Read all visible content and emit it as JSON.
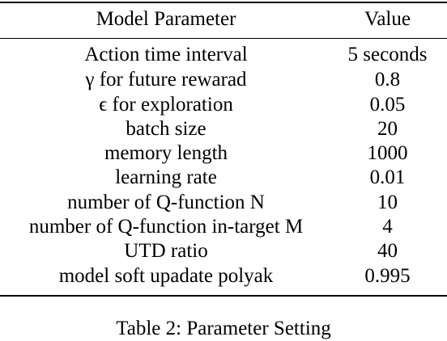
{
  "table": {
    "headers": [
      "Model Parameter",
      "Value"
    ],
    "rows": [
      {
        "param": "Action time interval",
        "value": "5 seconds"
      },
      {
        "param": "γ for future rewarad",
        "value": "0.8"
      },
      {
        "param": "ϵ for exploration",
        "value": "0.05"
      },
      {
        "param": "batch size",
        "value": "20"
      },
      {
        "param": "memory length",
        "value": "1000"
      },
      {
        "param": "learning rate",
        "value": "0.01"
      },
      {
        "param": "number of Q-function N",
        "value": "10"
      },
      {
        "param": "number of Q-function in-target M",
        "value": "4"
      },
      {
        "param": "UTD ratio",
        "value": "40"
      },
      {
        "param": "model soft upadate polyak",
        "value": "0.995"
      }
    ]
  },
  "caption": "Table 2: Parameter Setting"
}
